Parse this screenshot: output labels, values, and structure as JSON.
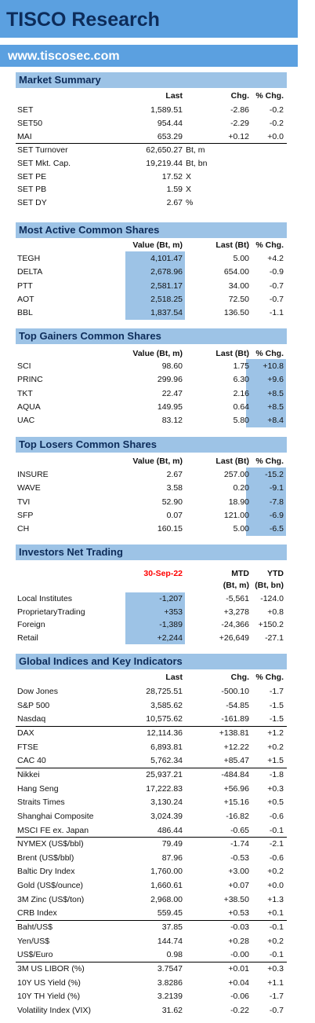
{
  "header": {
    "title": "TISCO Research",
    "website": "www.tiscosec.com"
  },
  "sections": [
    {
      "title": "Market Summary",
      "column_headers": [
        [
          "Last",
          "Chg.",
          "% Chg."
        ]
      ],
      "groups": [
        [
          {
            "label": "SET",
            "cells": [
              "1,589.51",
              "-2.86",
              "-0.2"
            ]
          },
          {
            "label": "SET50",
            "cells": [
              "954.44",
              "-2.29",
              "-0.2"
            ]
          },
          {
            "label": "MAI",
            "cells": [
              "653.29",
              "+0.12",
              "+0.0"
            ]
          }
        ],
        [
          {
            "label": "SET Turnover",
            "cells": [
              "62,650.27"
            ],
            "unit": "Bt, m"
          },
          {
            "label": "SET Mkt. Cap.",
            "cells": [
              "19,219.44"
            ],
            "unit": "Bt, bn"
          },
          {
            "label": "SET PE",
            "cells": [
              "17.52"
            ],
            "unit": "X"
          },
          {
            "label": "SET PB",
            "cells": [
              "1.59"
            ],
            "unit": "X"
          },
          {
            "label": "SET DY",
            "cells": [
              "2.67"
            ],
            "unit": "%"
          }
        ]
      ]
    },
    {
      "title": "Most Active Common Shares",
      "column_headers": [
        [
          "Value (Bt, m)",
          "Last (Bt)",
          "% Chg."
        ]
      ],
      "highlight_column": 0,
      "highlight_color": "#9dc3e6",
      "groups": [
        [
          {
            "label": "TEGH",
            "cells": [
              "4,101.47",
              "5.00",
              "+4.2"
            ]
          },
          {
            "label": "DELTA",
            "cells": [
              "2,678.96",
              "654.00",
              "-0.9"
            ]
          },
          {
            "label": "PTT",
            "cells": [
              "2,581.17",
              "34.00",
              "-0.7"
            ]
          },
          {
            "label": "AOT",
            "cells": [
              "2,518.25",
              "72.50",
              "-0.7"
            ]
          },
          {
            "label": "BBL",
            "cells": [
              "1,837.54",
              "136.50",
              "-1.1"
            ]
          }
        ]
      ]
    },
    {
      "title": "Top Gainers Common Shares",
      "column_headers": [
        [
          "Value (Bt, m)",
          "Last (Bt)",
          "% Chg."
        ]
      ],
      "highlight_column": 2,
      "highlight_color": "#9dc3e6",
      "groups": [
        [
          {
            "label": "SCI",
            "cells": [
              "98.60",
              "1.75",
              "+10.8"
            ]
          },
          {
            "label": "PRINC",
            "cells": [
              "299.96",
              "6.30",
              "+9.6"
            ]
          },
          {
            "label": "TKT",
            "cells": [
              "22.47",
              "2.16",
              "+8.5"
            ]
          },
          {
            "label": "AQUA",
            "cells": [
              "149.95",
              "0.64",
              "+8.5"
            ]
          },
          {
            "label": "UAC",
            "cells": [
              "83.12",
              "5.80",
              "+8.4"
            ]
          }
        ]
      ]
    },
    {
      "title": "Top Losers Common Shares",
      "column_headers": [
        [
          "Value (Bt, m)",
          "Last (Bt)",
          "% Chg."
        ]
      ],
      "highlight_column": 2,
      "highlight_color": "#9dc3e6",
      "groups": [
        [
          {
            "label": "INSURE",
            "cells": [
              "2.67",
              "257.00",
              "-15.2"
            ]
          },
          {
            "label": "WAVE",
            "cells": [
              "3.58",
              "0.20",
              "-9.1"
            ]
          },
          {
            "label": "TVI",
            "cells": [
              "52.90",
              "18.90",
              "-7.8"
            ]
          },
          {
            "label": "SFP",
            "cells": [
              "0.07",
              "121.00",
              "-6.9"
            ]
          },
          {
            "label": "CH",
            "cells": [
              "160.15",
              "5.00",
              "-6.5"
            ]
          }
        ]
      ]
    },
    {
      "title": "Investors Net Trading",
      "column_headers": [
        [
          "30-Sep-22",
          "MTD",
          "YTD"
        ],
        [
          null,
          "(Bt, m)",
          "(Bt, bn)"
        ]
      ],
      "first_header_color": "#ff0000",
      "highlight_column": 0,
      "highlight_color": "#9dc3e6",
      "groups": [
        [
          {
            "label": "Local Institutes",
            "cells": [
              "-1,207",
              "-5,561",
              "-124.0"
            ]
          },
          {
            "label": "ProprietaryTrading",
            "cells": [
              "+353",
              "+3,278",
              "+0.8"
            ]
          },
          {
            "label": "Foreign",
            "cells": [
              "-1,389",
              "-24,366",
              "+150.2"
            ]
          },
          {
            "label": "Retail",
            "cells": [
              "+2,244",
              "+26,649",
              "-27.1"
            ]
          }
        ]
      ]
    },
    {
      "title": "Global Indices and Key Indicators",
      "column_headers": [
        [
          "Last",
          "Chg.",
          "% Chg."
        ]
      ],
      "groups": [
        [
          {
            "label": "Dow Jones",
            "cells": [
              "28,725.51",
              "-500.10",
              "-1.7"
            ]
          },
          {
            "label": "S&P 500",
            "cells": [
              "3,585.62",
              "-54.85",
              "-1.5"
            ]
          },
          {
            "label": "Nasdaq",
            "cells": [
              "10,575.62",
              "-161.89",
              "-1.5"
            ]
          }
        ],
        [
          {
            "label": "DAX",
            "cells": [
              "12,114.36",
              "+138.81",
              "+1.2"
            ]
          },
          {
            "label": "FTSE",
            "cells": [
              "6,893.81",
              "+12.22",
              "+0.2"
            ]
          },
          {
            "label": "CAC 40",
            "cells": [
              "5,762.34",
              "+85.47",
              "+1.5"
            ]
          }
        ],
        [
          {
            "label": "Nikkei",
            "cells": [
              "25,937.21",
              "-484.84",
              "-1.8"
            ]
          },
          {
            "label": "Hang Seng",
            "cells": [
              "17,222.83",
              "+56.96",
              "+0.3"
            ]
          },
          {
            "label": "Straits Times",
            "cells": [
              "3,130.24",
              "+15.16",
              "+0.5"
            ]
          },
          {
            "label": "Shanghai Composite",
            "cells": [
              "3,024.39",
              "-16.82",
              "-0.6"
            ]
          },
          {
            "label": "MSCI FE ex. Japan",
            "cells": [
              "486.44",
              "-0.65",
              "-0.1"
            ]
          }
        ],
        [
          {
            "label": "NYMEX (US$/bbl)",
            "cells": [
              "79.49",
              "-1.74",
              "-2.1"
            ]
          },
          {
            "label": "Brent (US$/bbl)",
            "cells": [
              "87.96",
              "-0.53",
              "-0.6"
            ]
          },
          {
            "label": "Baltic Dry Index",
            "cells": [
              "1,760.00",
              "+3.00",
              "+0.2"
            ]
          },
          {
            "label": "Gold (US$/ounce)",
            "cells": [
              "1,660.61",
              "+0.07",
              "+0.0"
            ]
          },
          {
            "label": "3M Zinc (US$/ton)",
            "cells": [
              "2,968.00",
              "+38.50",
              "+1.3"
            ]
          },
          {
            "label": "CRB Index",
            "cells": [
              "559.45",
              "+0.53",
              "+0.1"
            ]
          }
        ],
        [
          {
            "label": "Baht/US$",
            "cells": [
              "37.85",
              "-0.03",
              "-0.1"
            ]
          },
          {
            "label": "Yen/US$",
            "cells": [
              "144.74",
              "+0.28",
              "+0.2"
            ]
          },
          {
            "label": "US$/Euro",
            "cells": [
              "0.98",
              "-0.00",
              "-0.1"
            ]
          }
        ],
        [
          {
            "label": "3M US LIBOR (%)",
            "cells": [
              "3.7547",
              "+0.01",
              "+0.3"
            ]
          },
          {
            "label": "10Y US Yield (%)",
            "cells": [
              "3.8286",
              "+0.04",
              "+1.1"
            ]
          },
          {
            "label": "10Y TH Yield (%)",
            "cells": [
              "3.2139",
              "-0.06",
              "-1.7"
            ]
          },
          {
            "label": "Volatility Index (VIX)",
            "cells": [
              "31.62",
              "-0.22",
              "-0.7"
            ]
          }
        ]
      ]
    }
  ]
}
